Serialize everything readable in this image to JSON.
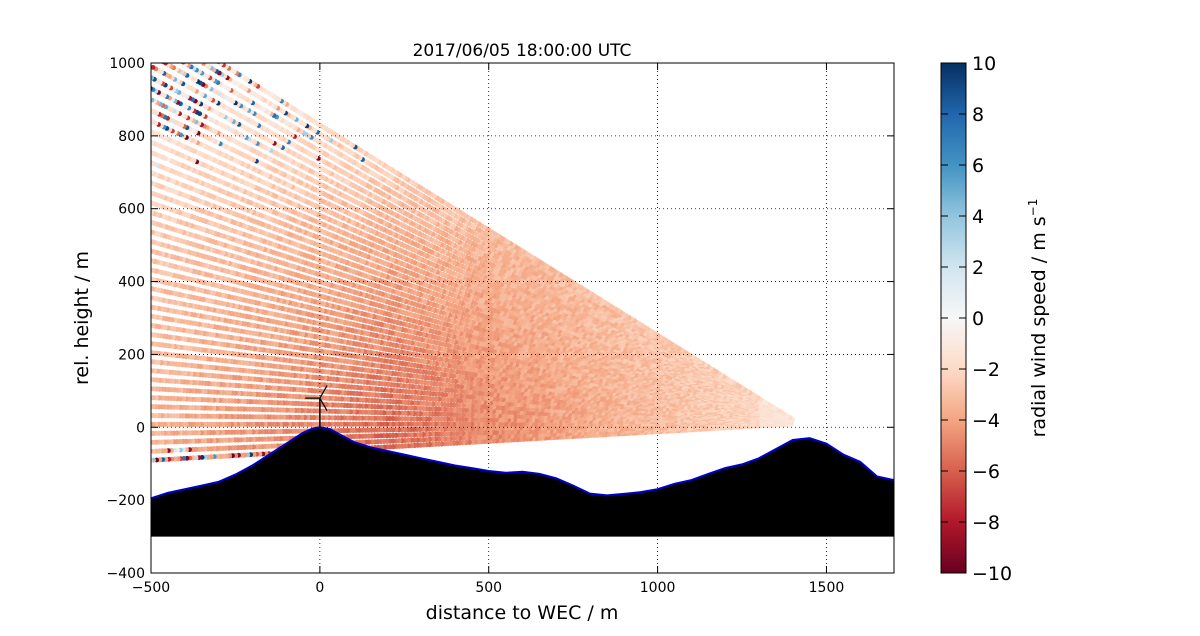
{
  "chart_data": {
    "type": "heatmap",
    "title": "2017/06/05 18:00:00 UTC",
    "xlabel": "distance to WEC / m",
    "ylabel": "rel. height / m",
    "xlim": [
      -500,
      1700
    ],
    "ylim": [
      -400,
      1000
    ],
    "xticks": [
      -500,
      0,
      500,
      1000,
      1500
    ],
    "yticks": [
      -400,
      -200,
      0,
      200,
      400,
      600,
      800,
      1000
    ],
    "grid": true,
    "colorbar": {
      "label": "radial wind speed / m s",
      "label_superscript": "−1",
      "range": [
        -10,
        10
      ],
      "ticks": [
        -10,
        -8,
        -6,
        -4,
        -2,
        0,
        2,
        4,
        6,
        8,
        10
      ],
      "colormap": "RdBu",
      "colors": [
        "#67001f",
        "#b2182b",
        "#d6604d",
        "#f4a582",
        "#fddbc7",
        "#f7f7f7",
        "#d1e5f0",
        "#92c5de",
        "#4393c3",
        "#2166ac",
        "#053061"
      ]
    },
    "scan": {
      "origin": [
        1420,
        10
      ],
      "max_range_m": 2150,
      "elevation_deg_min": -3,
      "elevation_deg_max": 30
    },
    "terrain": {
      "color": "#000000",
      "outline_color": "#0000cc",
      "base": -300,
      "profile": [
        [
          -500,
          -195
        ],
        [
          -450,
          -180
        ],
        [
          -400,
          -170
        ],
        [
          -350,
          -160
        ],
        [
          -300,
          -150
        ],
        [
          -250,
          -130
        ],
        [
          -200,
          -105
        ],
        [
          -150,
          -75
        ],
        [
          -100,
          -45
        ],
        [
          -50,
          -15
        ],
        [
          -20,
          -3
        ],
        [
          0,
          0
        ],
        [
          30,
          -5
        ],
        [
          60,
          -20
        ],
        [
          100,
          -40
        ],
        [
          150,
          -55
        ],
        [
          200,
          -65
        ],
        [
          250,
          -75
        ],
        [
          300,
          -85
        ],
        [
          350,
          -95
        ],
        [
          400,
          -105
        ],
        [
          450,
          -112
        ],
        [
          500,
          -120
        ],
        [
          550,
          -125
        ],
        [
          600,
          -122
        ],
        [
          650,
          -128
        ],
        [
          700,
          -140
        ],
        [
          750,
          -160
        ],
        [
          800,
          -182
        ],
        [
          850,
          -187
        ],
        [
          900,
          -183
        ],
        [
          950,
          -178
        ],
        [
          1000,
          -170
        ],
        [
          1050,
          -155
        ],
        [
          1100,
          -145
        ],
        [
          1150,
          -128
        ],
        [
          1200,
          -112
        ],
        [
          1250,
          -102
        ],
        [
          1300,
          -85
        ],
        [
          1350,
          -60
        ],
        [
          1400,
          -35
        ],
        [
          1450,
          -30
        ],
        [
          1500,
          -45
        ],
        [
          1550,
          -75
        ],
        [
          1600,
          -95
        ],
        [
          1650,
          -135
        ],
        [
          1700,
          -145
        ]
      ]
    },
    "wec": {
      "x": 0,
      "hub_height": 80,
      "rotor_radius": 40
    }
  }
}
